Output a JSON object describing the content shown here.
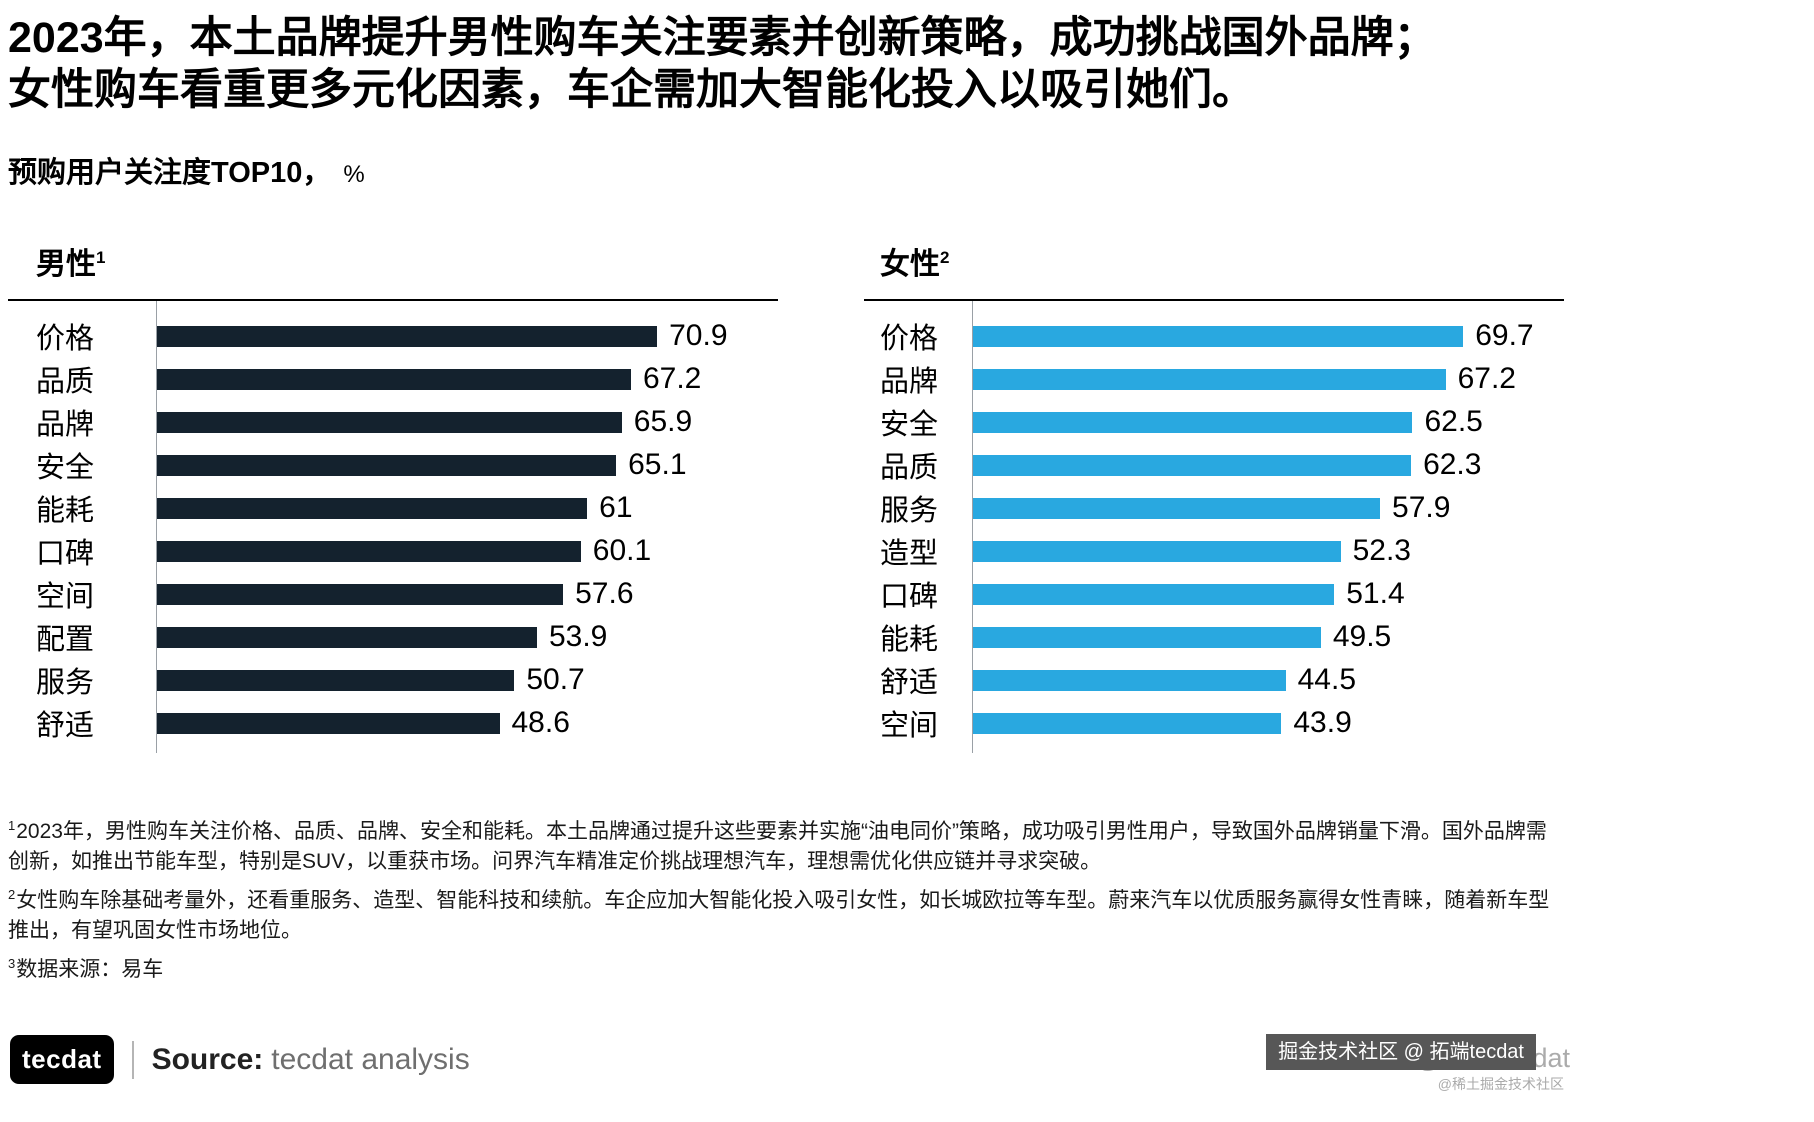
{
  "page": {
    "title_line1": "2023年，本土品牌提升男性购车关注要素并创新策略，成功挑战国外品牌；",
    "title_line2": "女性购车看重更多元化因素，车企需加大智能化投入以吸引她们。",
    "subtitle_bold": "预购用户关注度TOP10，",
    "subtitle_suffix": "%"
  },
  "chart_data": [
    {
      "type": "bar",
      "orientation": "horizontal",
      "title": "男性",
      "title_superscript": "1",
      "bar_color": "#14222e",
      "categories": [
        "价格",
        "品质",
        "品牌",
        "安全",
        "能耗",
        "口碑",
        "空间",
        "配置",
        "服务",
        "舒适"
      ],
      "values": [
        70.9,
        67.2,
        65.9,
        65.1,
        61,
        60.1,
        57.6,
        53.9,
        50.7,
        48.6
      ],
      "unit": "%",
      "xlim": [
        0,
        88
      ],
      "grid": false,
      "legend": false
    },
    {
      "type": "bar",
      "orientation": "horizontal",
      "title": "女性",
      "title_superscript": "2",
      "bar_color": "#29a8e0",
      "categories": [
        "价格",
        "品牌",
        "安全",
        "品质",
        "服务",
        "造型",
        "口碑",
        "能耗",
        "舒适",
        "空间"
      ],
      "values": [
        69.7,
        67.2,
        62.5,
        62.3,
        57.9,
        52.3,
        51.4,
        49.5,
        44.5,
        43.9
      ],
      "unit": "%",
      "xlim": [
        0,
        84
      ],
      "grid": false,
      "legend": false
    }
  ],
  "footnotes": [
    {
      "sup": "1",
      "text": "2023年，男性购车关注价格、品质、品牌、安全和能耗。本土品牌通过提升这些要素并实施“油电同价”策略，成功吸引男性用户，导致国外品牌销量下滑。国外品牌需创新，如推出节能车型，特别是SUV，以重获市场。问界汽车精准定价挑战理想汽车，理想需优化供应链并寻求突破。"
    },
    {
      "sup": "2",
      "text": "女性购车除基础考量外，还看重服务、造型、智能科技和续航。车企应加大智能化投入吸引女性，如长城欧拉等车型。蔚来汽车以优质服务赢得女性青睐，随着新车型推出，有望巩固女性市场地位。"
    },
    {
      "sup": "3",
      "text": "数据来源：易车"
    }
  ],
  "footer": {
    "logo_text": "tecdat",
    "source_label": "Source:",
    "source_value": "tecdat analysis"
  },
  "watermark": {
    "primary": "掘金技术社区 @ 拓端tecdat",
    "secondary": "CSDN @拓端tecdat",
    "tertiary": "@稀土掘金技术社区"
  }
}
